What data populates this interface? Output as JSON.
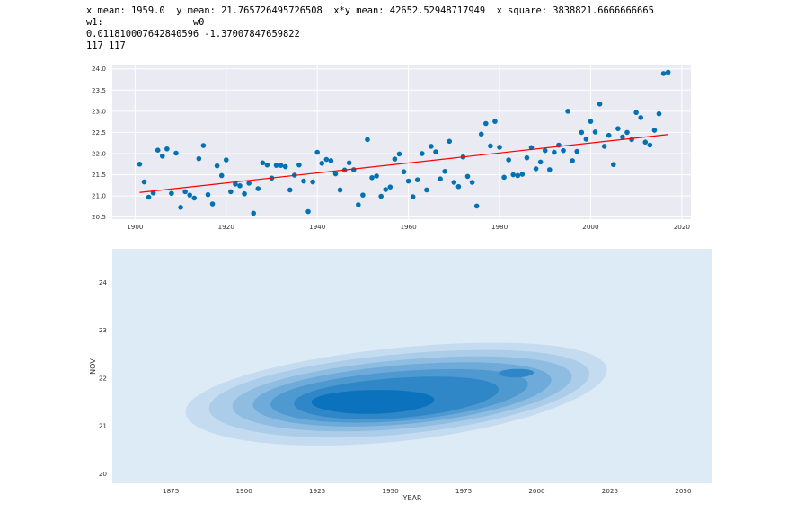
{
  "console": {
    "line1": "x mean: 1959.0  y mean: 21.765726495726508  x*y mean: 42652.52948717949  x square: 3838821.6666666665",
    "line2": "w1:                w0",
    "line3": "0.011810007642840596 -1.37007847659822",
    "line4": "117 117"
  },
  "colors": {
    "points": "#0072b2",
    "fit_line": "#ff0000",
    "plot_bg": "#eaeaf2",
    "kde_bg": "#ddebf7",
    "grid": "#ffffff"
  },
  "chart_data": [
    {
      "type": "scatter",
      "xlim": [
        1895,
        2022
      ],
      "ylim": [
        20.45,
        24.1
      ],
      "xticks": [
        "1900",
        "1920",
        "1940",
        "1960",
        "1980",
        "2000",
        "2020"
      ],
      "yticks": [
        "20.5",
        "21.0",
        "21.5",
        "22.0",
        "22.5",
        "23.0",
        "23.5",
        "24.0"
      ],
      "grid": true,
      "x": [
        1901,
        1902,
        1903,
        1904,
        1905,
        1906,
        1907,
        1908,
        1909,
        1910,
        1911,
        1912,
        1913,
        1914,
        1915,
        1916,
        1917,
        1918,
        1919,
        1920,
        1921,
        1922,
        1923,
        1924,
        1925,
        1926,
        1927,
        1928,
        1929,
        1930,
        1931,
        1932,
        1933,
        1934,
        1935,
        1936,
        1937,
        1938,
        1939,
        1940,
        1941,
        1942,
        1943,
        1944,
        1945,
        1946,
        1947,
        1948,
        1949,
        1950,
        1951,
        1952,
        1953,
        1954,
        1955,
        1956,
        1957,
        1958,
        1959,
        1960,
        1961,
        1962,
        1963,
        1964,
        1965,
        1966,
        1967,
        1968,
        1969,
        1970,
        1971,
        1972,
        1973,
        1974,
        1975,
        1976,
        1977,
        1978,
        1979,
        1980,
        1981,
        1982,
        1983,
        1984,
        1985,
        1986,
        1987,
        1988,
        1989,
        1990,
        1991,
        1992,
        1993,
        1994,
        1995,
        1996,
        1997,
        1998,
        1999,
        2000,
        2001,
        2002,
        2003,
        2004,
        2005,
        2006,
        2007,
        2008,
        2009,
        2010,
        2011,
        2012,
        2013,
        2014,
        2015,
        2016,
        2017
      ],
      "y": [
        21.75,
        21.33,
        20.97,
        21.07,
        22.08,
        21.94,
        22.11,
        21.06,
        22.01,
        20.73,
        21.1,
        21.02,
        20.95,
        21.88,
        22.19,
        21.03,
        20.81,
        21.71,
        21.48,
        21.85,
        21.1,
        21.28,
        21.24,
        21.05,
        21.3,
        20.59,
        21.17,
        21.78,
        21.73,
        21.42,
        21.72,
        21.72,
        21.69,
        21.14,
        21.49,
        21.73,
        21.35,
        20.63,
        21.33,
        22.03,
        21.77,
        21.86,
        21.83,
        21.52,
        21.14,
        21.61,
        21.78,
        21.62,
        20.79,
        21.02,
        22.33,
        21.43,
        21.47,
        20.99,
        21.15,
        21.21,
        21.87,
        21.99,
        21.57,
        21.35,
        20.98,
        21.38,
        22.0,
        21.14,
        22.17,
        22.04,
        21.4,
        21.58,
        22.29,
        21.32,
        21.22,
        21.92,
        21.46,
        21.32,
        20.76,
        22.46,
        22.71,
        22.18,
        22.76,
        22.15,
        21.44,
        21.85,
        21.5,
        21.48,
        21.51,
        21.9,
        22.14,
        21.64,
        21.8,
        22.07,
        21.62,
        22.03,
        22.2,
        22.07,
        23.0,
        21.83,
        22.05,
        22.5,
        22.34,
        22.76,
        22.51,
        23.17,
        22.17,
        22.43,
        21.74,
        22.59,
        22.39,
        22.5,
        22.33,
        22.97,
        22.85,
        22.27,
        22.2,
        22.55,
        22.94,
        23.89,
        23.92
      ],
      "fit": {
        "w1": 0.011810007642840596,
        "w0": -1.37007847659822
      }
    },
    {
      "type": "kde",
      "xlabel": "YEAR",
      "ylabel": "NOV",
      "xlim": [
        1855,
        2060
      ],
      "ylim": [
        19.8,
        24.7
      ],
      "xticks": [
        "1875",
        "1900",
        "1925",
        "1950",
        "1975",
        "2000",
        "2025",
        "2050"
      ],
      "yticks": [
        "20",
        "21",
        "22",
        "23",
        "24"
      ],
      "levels": [
        {
          "cx": 1952,
          "cy": 21.65,
          "rx": 72,
          "ry": 0.98,
          "tilt": 0.28,
          "color": "#c5dcf0"
        },
        {
          "cx": 1953,
          "cy": 21.66,
          "rx": 65,
          "ry": 0.84,
          "tilt": 0.27,
          "color": "#abcde9"
        },
        {
          "cx": 1954,
          "cy": 21.66,
          "rx": 58,
          "ry": 0.72,
          "tilt": 0.27,
          "color": "#8fbde2"
        },
        {
          "cx": 1954,
          "cy": 21.65,
          "rx": 51,
          "ry": 0.62,
          "tilt": 0.26,
          "color": "#6fabda"
        },
        {
          "cx": 1953,
          "cy": 21.62,
          "rx": 44,
          "ry": 0.52,
          "tilt": 0.25,
          "color": "#4f99d1"
        },
        {
          "cx": 1952,
          "cy": 21.58,
          "rx": 35,
          "ry": 0.42,
          "tilt": 0.22,
          "color": "#2f87c8"
        },
        {
          "cx": 1944,
          "cy": 21.5,
          "rx": 21,
          "ry": 0.25,
          "tilt": 0.06,
          "color": "#0b73bd"
        },
        {
          "cx": 1993,
          "cy": 22.1,
          "rx": 6,
          "ry": 0.09,
          "tilt": 0.05,
          "color": "#2f87c8"
        }
      ]
    }
  ]
}
